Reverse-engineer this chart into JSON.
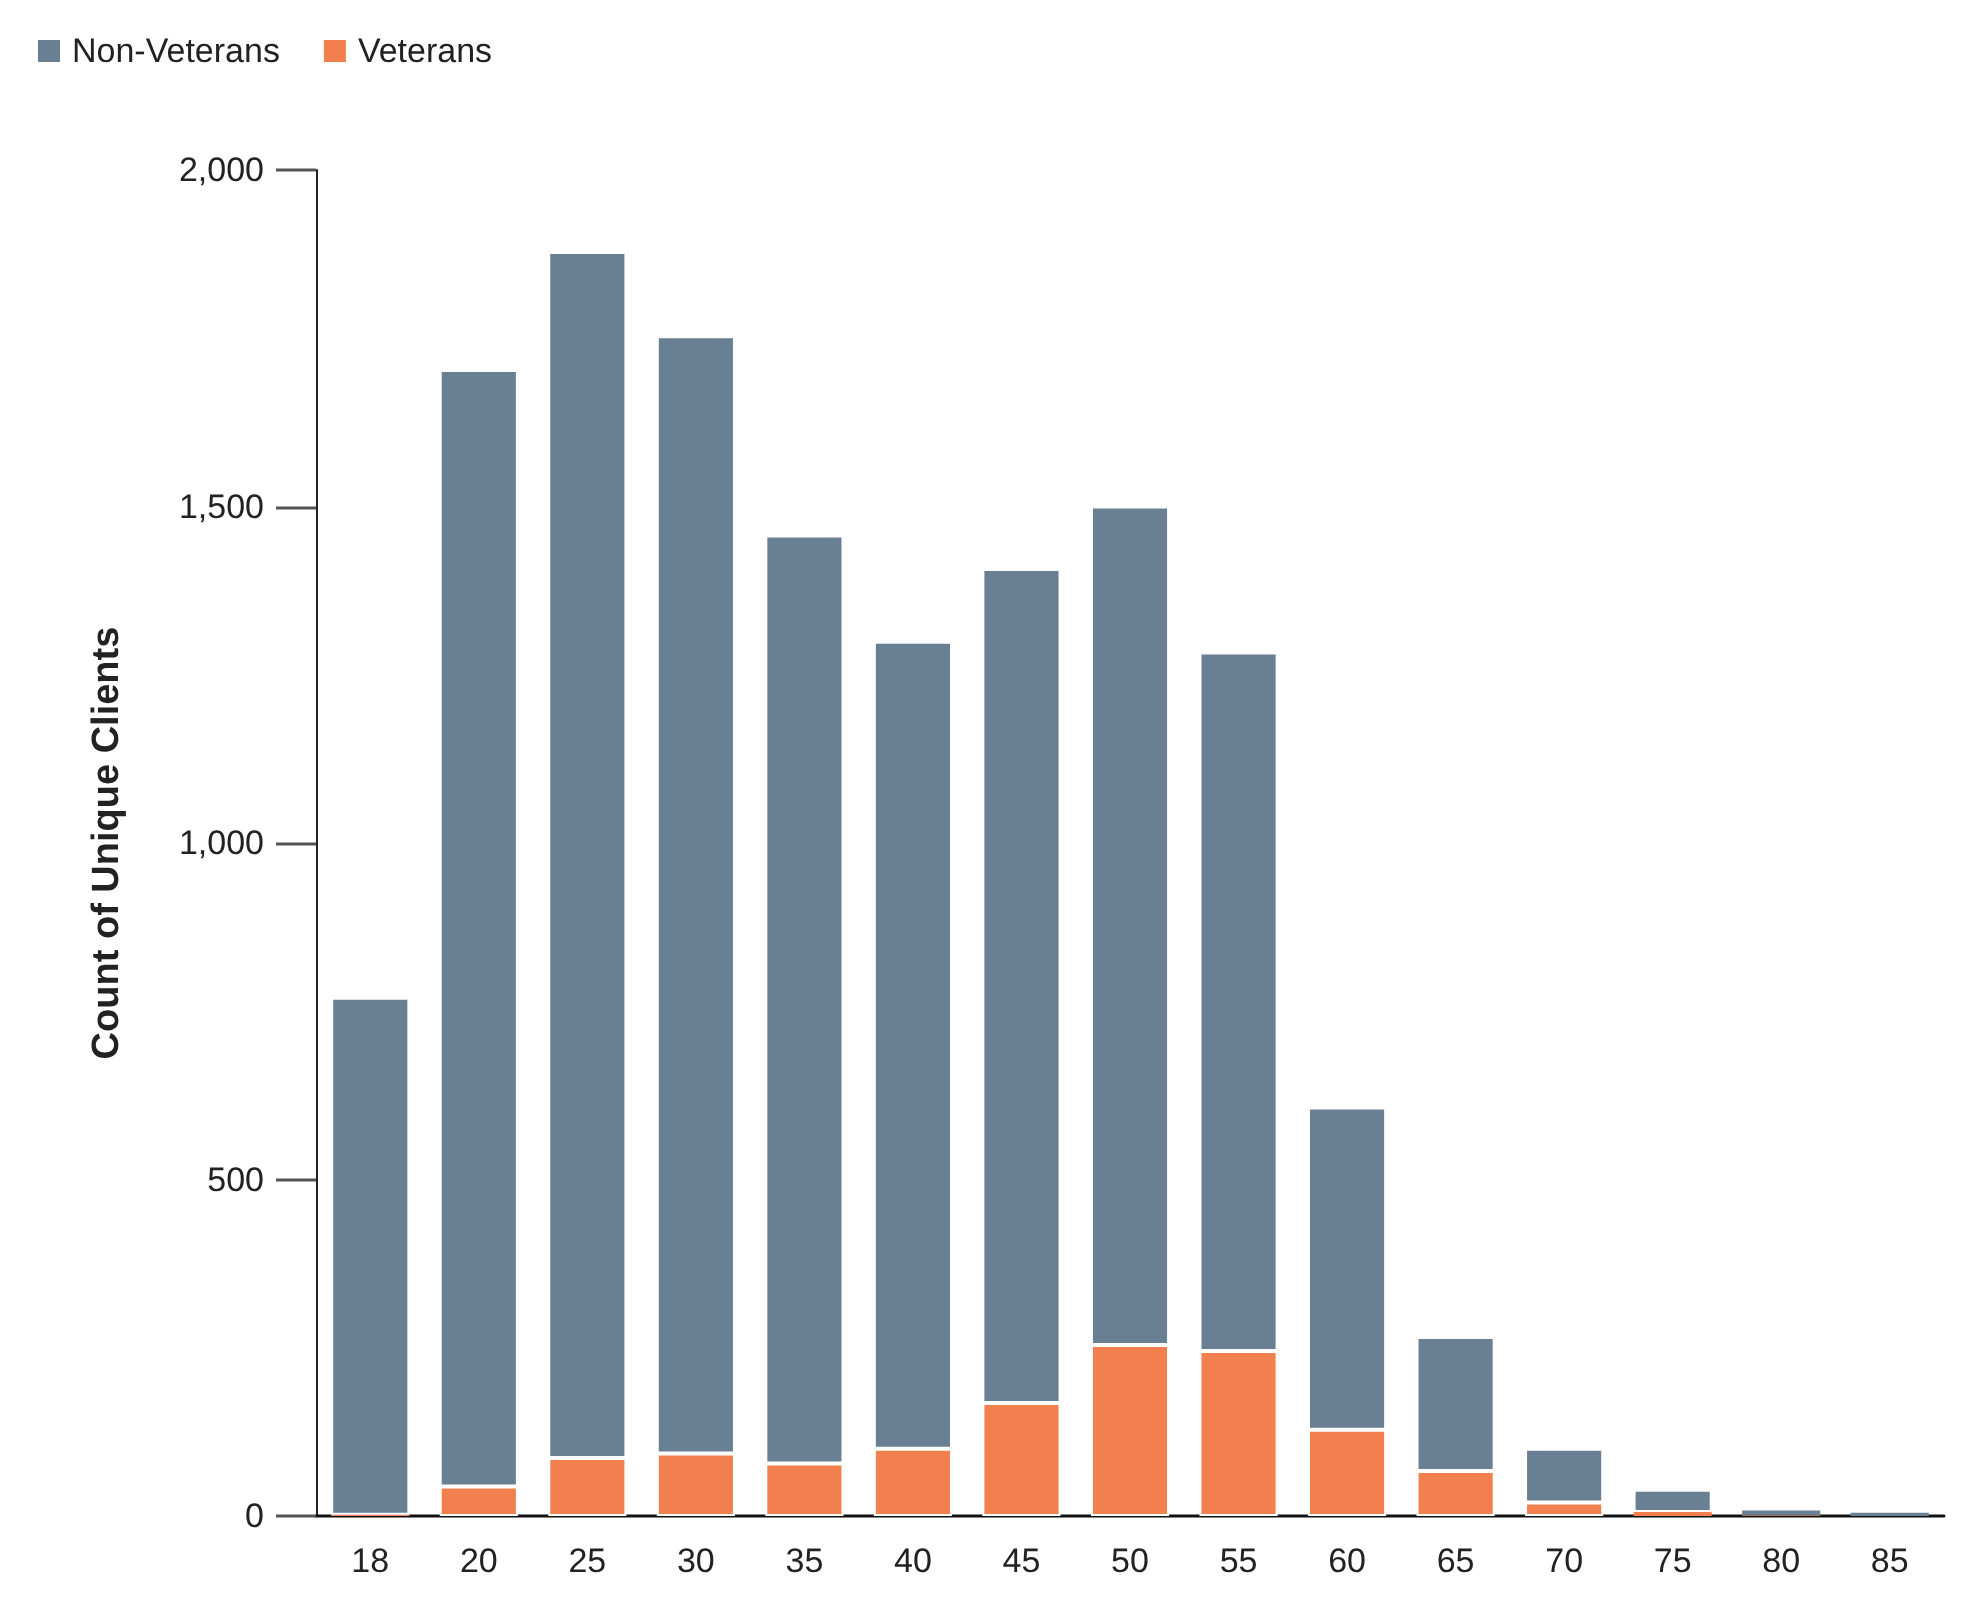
{
  "chart_data": {
    "type": "bar",
    "stacked": true,
    "ylabel": "Count of Unique Clients",
    "categories": [
      "18",
      "20",
      "25",
      "30",
      "35",
      "40",
      "45",
      "50",
      "55",
      "60",
      "65",
      "70",
      "75",
      "80",
      "85"
    ],
    "series": [
      {
        "name": "Veterans",
        "color": "#f2804e",
        "values": [
          2,
          44,
          86,
          93,
          78,
          100,
          168,
          254,
          245,
          128,
          67,
          20,
          6,
          1,
          0
        ]
      },
      {
        "name": "Non-Veterans",
        "color": "#687f94",
        "values": [
          768,
          1659,
          1792,
          1660,
          1379,
          1199,
          1239,
          1246,
          1038,
          479,
          199,
          80,
          33,
          7,
          5
        ]
      }
    ],
    "ylim": [
      0,
      2000
    ],
    "yticks": [
      0,
      500,
      {
        "value": 1000,
        "label": "1,000"
      },
      {
        "value": 1500,
        "label": "1,500"
      },
      {
        "value": 2000,
        "label": "2,000"
      }
    ],
    "grid": false,
    "legend": "top left"
  }
}
